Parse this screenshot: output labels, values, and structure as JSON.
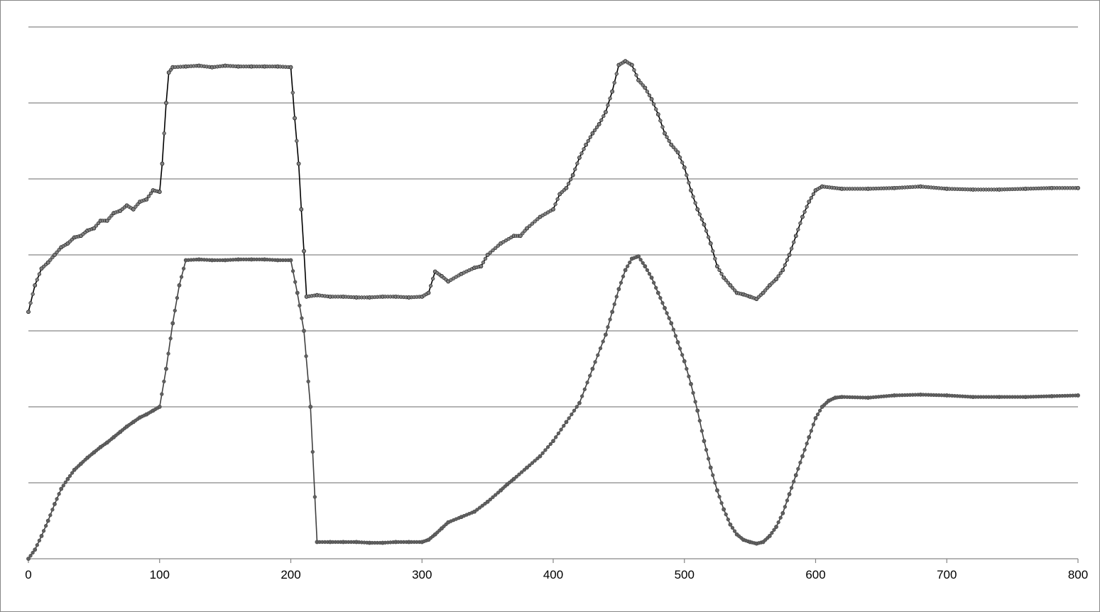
{
  "chart_data": {
    "type": "line",
    "title": "",
    "xlabel": "",
    "ylabel": "",
    "xlim": [
      0,
      800
    ],
    "ylim": [
      0,
      7
    ],
    "x_ticks": [
      0,
      100,
      200,
      300,
      400,
      500,
      600,
      700,
      800
    ],
    "y_tick_labels_shown": false,
    "grid": "horizontal",
    "legend": "none",
    "marker": "circle",
    "series": [
      {
        "color": "#808080",
        "line_color": "#000000",
        "points": [
          [
            0,
            3.25
          ],
          [
            5,
            3.6
          ],
          [
            10,
            3.82
          ],
          [
            15,
            3.9
          ],
          [
            20,
            4.0
          ],
          [
            25,
            4.1
          ],
          [
            30,
            4.15
          ],
          [
            35,
            4.23
          ],
          [
            40,
            4.25
          ],
          [
            45,
            4.32
          ],
          [
            50,
            4.35
          ],
          [
            55,
            4.45
          ],
          [
            60,
            4.45
          ],
          [
            65,
            4.55
          ],
          [
            70,
            4.58
          ],
          [
            75,
            4.65
          ],
          [
            80,
            4.6
          ],
          [
            85,
            4.7
          ],
          [
            90,
            4.73
          ],
          [
            95,
            4.85
          ],
          [
            100,
            4.83
          ],
          [
            102,
            5.2
          ],
          [
            105,
            6.0
          ],
          [
            107,
            6.4
          ],
          [
            110,
            6.47
          ],
          [
            120,
            6.48
          ],
          [
            130,
            6.49
          ],
          [
            140,
            6.47
          ],
          [
            150,
            6.49
          ],
          [
            160,
            6.48
          ],
          [
            170,
            6.48
          ],
          [
            180,
            6.48
          ],
          [
            190,
            6.48
          ],
          [
            200,
            6.47
          ],
          [
            203,
            5.8
          ],
          [
            206,
            5.2
          ],
          [
            208,
            4.6
          ],
          [
            210,
            4.05
          ],
          [
            212,
            3.45
          ],
          [
            220,
            3.47
          ],
          [
            230,
            3.45
          ],
          [
            240,
            3.45
          ],
          [
            250,
            3.44
          ],
          [
            260,
            3.44
          ],
          [
            270,
            3.45
          ],
          [
            280,
            3.45
          ],
          [
            290,
            3.44
          ],
          [
            300,
            3.45
          ],
          [
            305,
            3.5
          ],
          [
            310,
            3.78
          ],
          [
            315,
            3.72
          ],
          [
            320,
            3.65
          ],
          [
            330,
            3.75
          ],
          [
            340,
            3.83
          ],
          [
            345,
            3.85
          ],
          [
            350,
            4.0
          ],
          [
            360,
            4.15
          ],
          [
            370,
            4.25
          ],
          [
            375,
            4.25
          ],
          [
            380,
            4.35
          ],
          [
            390,
            4.5
          ],
          [
            400,
            4.6
          ],
          [
            405,
            4.8
          ],
          [
            410,
            4.88
          ],
          [
            415,
            5.05
          ],
          [
            420,
            5.28
          ],
          [
            425,
            5.45
          ],
          [
            430,
            5.6
          ],
          [
            435,
            5.72
          ],
          [
            440,
            5.88
          ],
          [
            445,
            6.15
          ],
          [
            450,
            6.5
          ],
          [
            455,
            6.55
          ],
          [
            460,
            6.5
          ],
          [
            465,
            6.3
          ],
          [
            470,
            6.2
          ],
          [
            475,
            6.05
          ],
          [
            480,
            5.85
          ],
          [
            485,
            5.6
          ],
          [
            490,
            5.45
          ],
          [
            495,
            5.35
          ],
          [
            500,
            5.15
          ],
          [
            505,
            4.85
          ],
          [
            510,
            4.6
          ],
          [
            515,
            4.4
          ],
          [
            520,
            4.15
          ],
          [
            525,
            3.85
          ],
          [
            530,
            3.7
          ],
          [
            535,
            3.6
          ],
          [
            540,
            3.5
          ],
          [
            545,
            3.48
          ],
          [
            550,
            3.45
          ],
          [
            555,
            3.42
          ],
          [
            560,
            3.5
          ],
          [
            565,
            3.6
          ],
          [
            570,
            3.68
          ],
          [
            575,
            3.8
          ],
          [
            580,
            4.0
          ],
          [
            585,
            4.25
          ],
          [
            590,
            4.5
          ],
          [
            595,
            4.7
          ],
          [
            600,
            4.85
          ],
          [
            605,
            4.9
          ],
          [
            620,
            4.87
          ],
          [
            640,
            4.87
          ],
          [
            660,
            4.88
          ],
          [
            680,
            4.9
          ],
          [
            700,
            4.87
          ],
          [
            720,
            4.86
          ],
          [
            740,
            4.86
          ],
          [
            760,
            4.87
          ],
          [
            780,
            4.88
          ],
          [
            800,
            4.88
          ]
        ]
      },
      {
        "color": "#606060",
        "line_color": "#404040",
        "points": [
          [
            0,
            0.0
          ],
          [
            5,
            0.12
          ],
          [
            10,
            0.3
          ],
          [
            15,
            0.5
          ],
          [
            20,
            0.72
          ],
          [
            25,
            0.92
          ],
          [
            30,
            1.05
          ],
          [
            35,
            1.17
          ],
          [
            40,
            1.25
          ],
          [
            45,
            1.33
          ],
          [
            50,
            1.4
          ],
          [
            55,
            1.47
          ],
          [
            60,
            1.53
          ],
          [
            65,
            1.6
          ],
          [
            70,
            1.67
          ],
          [
            75,
            1.74
          ],
          [
            80,
            1.8
          ],
          [
            85,
            1.86
          ],
          [
            90,
            1.9
          ],
          [
            95,
            1.95
          ],
          [
            100,
            2.0
          ],
          [
            105,
            2.5
          ],
          [
            110,
            3.1
          ],
          [
            115,
            3.6
          ],
          [
            120,
            3.93
          ],
          [
            130,
            3.94
          ],
          [
            140,
            3.93
          ],
          [
            150,
            3.93
          ],
          [
            160,
            3.94
          ],
          [
            170,
            3.94
          ],
          [
            180,
            3.94
          ],
          [
            190,
            3.93
          ],
          [
            200,
            3.93
          ],
          [
            205,
            3.5
          ],
          [
            210,
            3.0
          ],
          [
            215,
            2.0
          ],
          [
            220,
            0.22
          ],
          [
            230,
            0.22
          ],
          [
            240,
            0.22
          ],
          [
            250,
            0.22
          ],
          [
            260,
            0.21
          ],
          [
            270,
            0.21
          ],
          [
            280,
            0.22
          ],
          [
            290,
            0.22
          ],
          [
            300,
            0.22
          ],
          [
            305,
            0.25
          ],
          [
            310,
            0.32
          ],
          [
            315,
            0.4
          ],
          [
            320,
            0.48
          ],
          [
            330,
            0.55
          ],
          [
            340,
            0.62
          ],
          [
            350,
            0.75
          ],
          [
            360,
            0.9
          ],
          [
            365,
            0.98
          ],
          [
            370,
            1.05
          ],
          [
            380,
            1.2
          ],
          [
            390,
            1.35
          ],
          [
            400,
            1.55
          ],
          [
            410,
            1.8
          ],
          [
            420,
            2.05
          ],
          [
            430,
            2.5
          ],
          [
            440,
            2.95
          ],
          [
            445,
            3.25
          ],
          [
            450,
            3.55
          ],
          [
            455,
            3.8
          ],
          [
            460,
            3.95
          ],
          [
            465,
            3.98
          ],
          [
            470,
            3.85
          ],
          [
            475,
            3.7
          ],
          [
            480,
            3.5
          ],
          [
            485,
            3.3
          ],
          [
            490,
            3.1
          ],
          [
            495,
            2.85
          ],
          [
            500,
            2.6
          ],
          [
            505,
            2.3
          ],
          [
            510,
            1.95
          ],
          [
            515,
            1.55
          ],
          [
            520,
            1.2
          ],
          [
            525,
            0.9
          ],
          [
            530,
            0.65
          ],
          [
            535,
            0.45
          ],
          [
            540,
            0.32
          ],
          [
            545,
            0.25
          ],
          [
            550,
            0.22
          ],
          [
            555,
            0.2
          ],
          [
            560,
            0.22
          ],
          [
            565,
            0.3
          ],
          [
            570,
            0.42
          ],
          [
            575,
            0.6
          ],
          [
            580,
            0.85
          ],
          [
            585,
            1.1
          ],
          [
            590,
            1.35
          ],
          [
            595,
            1.6
          ],
          [
            600,
            1.85
          ],
          [
            605,
            2.0
          ],
          [
            610,
            2.08
          ],
          [
            615,
            2.12
          ],
          [
            620,
            2.13
          ],
          [
            640,
            2.12
          ],
          [
            660,
            2.15
          ],
          [
            680,
            2.16
          ],
          [
            700,
            2.15
          ],
          [
            720,
            2.13
          ],
          [
            740,
            2.13
          ],
          [
            760,
            2.13
          ],
          [
            780,
            2.14
          ],
          [
            800,
            2.15
          ]
        ]
      }
    ]
  }
}
